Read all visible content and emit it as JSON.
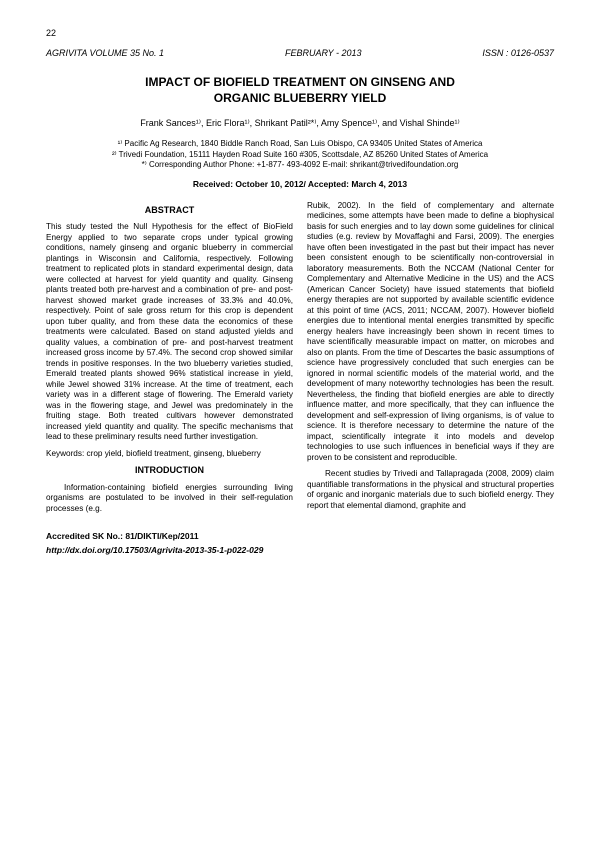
{
  "page": {
    "number": "22",
    "journal_vol": "AGRIVITA VOLUME 35 No. 1",
    "month_year": "FEBRUARY - 2013",
    "issn": "ISSN : 0126-0537"
  },
  "title_line1": "IMPACT OF BIOFIELD TREATMENT ON GINSENG AND",
  "title_line2": "ORGANIC BLUEBERRY YIELD",
  "authors": "Frank Sances¹⁾, Eric Flora¹⁾, Shrikant Patil²*⁾, Amy Spence¹⁾, and Vishal Shinde¹⁾",
  "affil1": "¹⁾ Pacific Ag Research, 1840 Biddle Ranch Road, San Luis Obispo, CA 93405 United States of America",
  "affil2": "²⁾ Trivedi Foundation, 15111 Hayden Road Suite 160 #305, Scottsdale, AZ 85260 United States of America",
  "affil3": "*⁾ Corresponding Author Phone: +1-877- 493-4092 E-mail: shrikant@trivedifoundation.org",
  "dates": "Received: October 10, 2012/  Accepted: March 4, 2013",
  "abstract_heading": "ABSTRACT",
  "abstract_body": "This study tested the Null Hypothesis for the effect of BioField Energy applied to two separate crops under typical growing conditions, namely ginseng and organic blueberry in commercial plantings in Wisconsin and California, respectively. Following treatment to replicated plots in standard experimental design, data were collected at harvest for yield quantity and quality. Ginseng plants treated both pre-harvest and a combination of pre- and post-harvest showed market grade increases of 33.3% and 40.0%, respectively. Point of sale gross return for this crop is dependent upon tuber quality, and from these data the economics of these treatments were calculated. Based on stand adjusted yields and quality values, a combination of pre- and post-harvest treatment increased gross income by 57.4%. The second crop showed similar trends in positive responses. In the two blueberry varieties studied, Emerald treated plants showed 96% statistical increase in yield, while Jewel showed 31% increase. At the time of treatment, each variety was in a different stage of flowering. The Emerald variety was in the flowering stage, and Jewel was predominately in the fruiting stage. Both treated cultivars however demonstrated increased yield quantity and quality. The specific mechanisms that lead to these preliminary results need further investigation.",
  "keywords": "Keywords: crop yield, biofield treatment, ginseng, blueberry",
  "intro_heading": "INTRODUCTION",
  "intro_p1": "Information-containing biofield energies surrounding living organisms are postulated to be involved in their self-regulation processes (e.g.",
  "intro_p2": "Rubik, 2002). In the field of complementary and alternate medicines, some attempts have been made to define a biophysical basis for such energies and to lay down some guidelines for clinical studies (e.g. review by Movaffaghi and Farsi, 2009). The energies have often been investigated in the past but their impact has never been consistent enough to be scientifically non-controversial in laboratory measurements. Both the NCCAM (National Center for Complementary and Alternative Medicine in the US) and the ACS (American Cancer Society) have issued statements that biofield energy therapies are not supported by available scientific evidence at this point of time (ACS, 2011; NCCAM, 2007). However biofield energies due to intentional mental energies transmitted by specific energy healers have increasingly been shown in recent times to have scientifically measurable impact on matter, on microbes and also on plants. From the time of Descartes the basic assumptions of science have progressively concluded that such energies can be ignored in normal scientific models of the material world, and the development of many noteworthy technologies has been the result. Nevertheless, the finding that biofield energies are able to directly influence matter, and more specifically, that they can influence the development and self-expression of living organisms, is of value to science. It is therefore necessary to determine the nature of the impact, scientifically integrate it into models and develop technologies to use such influences in beneficial ways if they are proven to be consistent and reproducible.",
  "intro_p3": "Recent studies by Trivedi and Tallapragada (2008, 2009) claim quantifiable transformations in the physical and structural properties of organic and inorganic materials due to such biofield energy. They report that elemental diamond, graphite and",
  "footer": {
    "sk": "Accredited SK No.:  81/DIKTI/Kep/2011",
    "doi": "http://dx.doi.org/10.17503/Agrivita-2013-35-1-p022-029"
  }
}
